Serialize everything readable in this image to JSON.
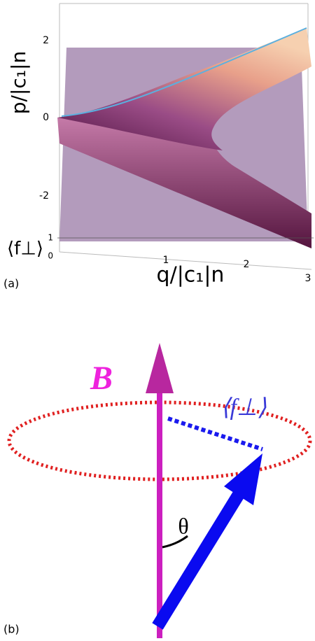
{
  "panel_a": {
    "label": "(a)",
    "y_axis_label": "p/|c₁|n",
    "x_axis_label": "q/|c₁|n",
    "z_axis_label": "⟨f⊥⟩",
    "y_ticks": [
      2,
      0,
      -2
    ],
    "z_ticks": [
      1,
      0
    ],
    "x_ticks": [
      1,
      2,
      3
    ]
  },
  "panel_b": {
    "label": "(b)",
    "field_label": "B",
    "vector_label": "⟨f⊥⟩",
    "angle_label": "θ"
  }
}
